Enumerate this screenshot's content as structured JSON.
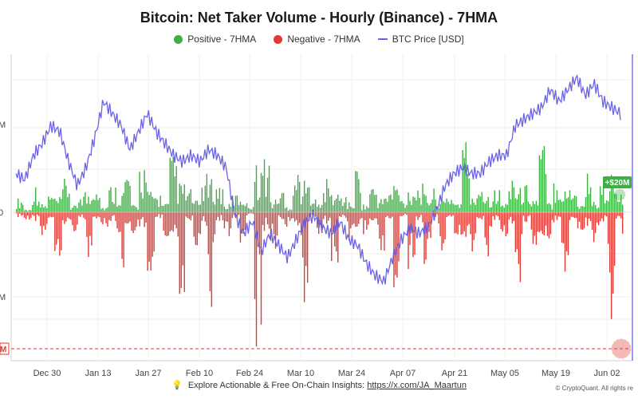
{
  "title": "Bitcoin: Net Taker Volume - Hourly (Binance) - 7HMA",
  "footer": {
    "prefix": "Explore Actionable & Free On-Chain Insights:",
    "link": "https://x.com/JA_Maartun"
  },
  "credit": "© CryptoQuant. All rights re",
  "colors": {
    "positive": "#3cb043",
    "negative": "#e03b35",
    "price": "#6b63e6",
    "badge_pos": "#3cb043",
    "badge_neg": "#e03b35"
  },
  "chart_data": {
    "type": "bar",
    "series": [
      {
        "name": "Positive - 7HMA",
        "color": "#3cb043"
      },
      {
        "name": "Negative - 7HMA",
        "color": "#e03b35"
      },
      {
        "name": "BTC Price [USD]",
        "color": "#6b63e6",
        "style": "line"
      }
    ],
    "x_tick_labels": [
      "Dec 30",
      "Jan 13",
      "Jan 27",
      "Feb 10",
      "Feb 24",
      "Mar 10",
      "Mar 24",
      "Apr 07",
      "Apr 21",
      "May 05",
      "May 19",
      "Jun 02"
    ],
    "y_tick_labels": [
      "M",
      "0",
      "M"
    ],
    "annotations": [
      {
        "label": "+$20M",
        "series": "Positive - 7HMA"
      },
      {
        "label": "M",
        "series": "Negative - 7HMA"
      }
    ],
    "net_taker_volume_samples_M": [
      15,
      -10,
      30,
      -25,
      20,
      -45,
      35,
      -20,
      25,
      -55,
      40,
      -18,
      30,
      -70,
      45,
      -22,
      55,
      -65,
      20,
      -30,
      60,
      -90,
      25,
      -35,
      40,
      -100,
      30,
      -25,
      20,
      -55,
      10,
      -150,
      60,
      -40,
      25,
      -20,
      45,
      -95,
      30,
      -25,
      35,
      -60,
      20,
      -30,
      50,
      -25,
      30,
      -45,
      25,
      -95,
      15,
      -80,
      30,
      -55,
      25,
      -40,
      20,
      -35,
      80,
      -45,
      35,
      -60,
      25,
      -30,
      50,
      -75,
      30,
      -45,
      75,
      -30,
      40,
      -70,
      35,
      -25,
      50,
      -35,
      30,
      -120,
      20,
      -35
    ],
    "btc_price_samples": [
      94,
      93,
      97,
      99,
      102,
      101,
      96,
      92,
      95,
      100,
      106,
      104,
      102,
      98,
      101,
      104,
      101,
      99,
      97,
      96,
      97,
      96,
      98,
      97,
      95,
      87,
      84,
      86,
      81,
      84,
      82,
      80,
      83,
      86,
      87,
      85,
      84,
      86,
      83,
      82,
      79,
      77,
      76,
      80,
      83,
      85,
      84,
      85,
      88,
      92,
      94,
      95,
      94,
      94,
      96,
      97,
      97,
      102,
      103,
      104,
      105,
      108,
      106,
      108,
      110,
      107,
      109,
      106,
      105,
      104
    ],
    "last_positive_value_M": 20,
    "negative_extreme_label": "M",
    "grid": true,
    "legend_position": "top-center"
  }
}
